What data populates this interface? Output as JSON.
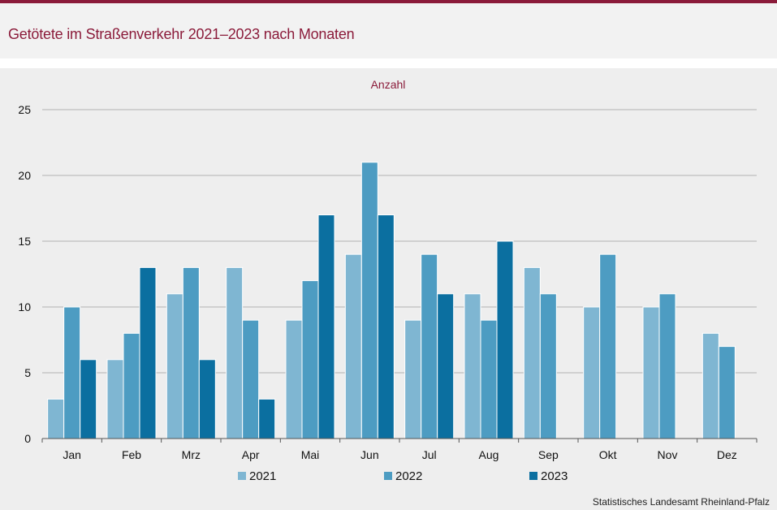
{
  "title": "Getötete im Straßenverkehr 2021–2023 nach Monaten",
  "source": "Statistisches Landesamt  Rheinland-Pfalz",
  "colors": {
    "accent": "#8b1b3a",
    "series": [
      "#7fb6d2",
      "#4d9cc2",
      "#0b6fa0"
    ]
  },
  "chart_data": {
    "type": "bar",
    "ylabel": "Anzahl",
    "ylim": [
      0,
      25
    ],
    "yticks": [
      0,
      5,
      10,
      15,
      20,
      25
    ],
    "grid": true,
    "legend_position": "bottom",
    "categories": [
      "Jan",
      "Feb",
      "Mrz",
      "Apr",
      "Mai",
      "Jun",
      "Jul",
      "Aug",
      "Sep",
      "Okt",
      "Nov",
      "Dez"
    ],
    "series": [
      {
        "name": "2021",
        "values": [
          3,
          6,
          11,
          13,
          9,
          14,
          9,
          11,
          13,
          10,
          10,
          8
        ]
      },
      {
        "name": "2022",
        "values": [
          10,
          8,
          13,
          9,
          12,
          21,
          14,
          9,
          11,
          14,
          11,
          7
        ]
      },
      {
        "name": "2023",
        "values": [
          6,
          13,
          6,
          3,
          17,
          17,
          11,
          15,
          null,
          null,
          null,
          null
        ]
      }
    ]
  }
}
